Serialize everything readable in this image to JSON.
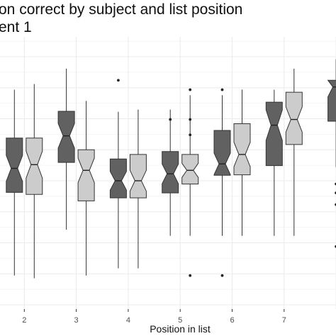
{
  "chart_data": {
    "type": "box",
    "title_lines": [
      "on correct by subject and list position",
      "ent 1"
    ],
    "xlabel": "Position in list",
    "ylabel": "",
    "x_ticks": [
      "2",
      "3",
      "4",
      "5",
      "6",
      "7"
    ],
    "notched": true,
    "grid": true,
    "legend": "none",
    "y_range": [
      0,
      1
    ],
    "series": [
      {
        "color": "#616161"
      },
      {
        "color": "#cccccc"
      }
    ],
    "groups": [
      {
        "position": 1,
        "boxes": [
          {
            "series": 0,
            "whisker_low": 0.118,
            "q1": 0.453,
            "median": 0.55,
            "q3": 0.672,
            "whisker_high": 0.867,
            "outliers": []
          },
          {
            "series": 1,
            "whisker_low": 0.107,
            "q1": 0.445,
            "median": 0.565,
            "q3": 0.672,
            "whisker_high": 0.89,
            "outliers": []
          }
        ]
      },
      {
        "position": 2,
        "boxes": [
          {
            "series": 0,
            "whisker_low": 0.303,
            "q1": 0.574,
            "median": 0.681,
            "q3": 0.78,
            "whisker_high": 0.952,
            "outliers": []
          },
          {
            "series": 1,
            "whisker_low": 0.118,
            "q1": 0.419,
            "median": 0.542,
            "q3": 0.625,
            "whisker_high": 0.822,
            "outliers": []
          }
        ]
      },
      {
        "position": 3,
        "boxes": [
          {
            "series": 0,
            "whisker_low": 0.147,
            "q1": 0.431,
            "median": 0.5,
            "q3": 0.588,
            "whisker_high": 0.778,
            "outliers": [
              0.905
            ]
          },
          {
            "series": 1,
            "whisker_low": 0.147,
            "q1": 0.431,
            "median": 0.5,
            "q3": 0.606,
            "whisker_high": 0.787,
            "outliers": []
          }
        ]
      },
      {
        "position": 4,
        "boxes": [
          {
            "series": 0,
            "whisker_low": 0.278,
            "q1": 0.451,
            "median": 0.528,
            "q3": 0.618,
            "whisker_high": 0.787,
            "outliers": [
              0.747
            ]
          },
          {
            "series": 1,
            "whisker_low": 0.278,
            "q1": 0.487,
            "median": 0.542,
            "q3": 0.606,
            "whisker_high": 0.845,
            "outliers": [
              0.685,
              0.747,
              0.867,
              0.118
            ]
          }
        ]
      },
      {
        "position": 5,
        "boxes": [
          {
            "series": 0,
            "whisker_low": 0.278,
            "q1": 0.522,
            "median": 0.568,
            "q3": 0.703,
            "whisker_high": 0.845,
            "outliers": [
              0.867,
              0.118
            ]
          },
          {
            "series": 1,
            "whisker_low": 0.278,
            "q1": 0.524,
            "median": 0.606,
            "q3": 0.73,
            "whisker_high": 0.867,
            "outliers": []
          }
        ]
      },
      {
        "position": 6,
        "boxes": [
          {
            "series": 0,
            "whisker_low": 0.278,
            "q1": 0.561,
            "median": 0.724,
            "q3": 0.817,
            "whisker_high": 0.867,
            "outliers": []
          },
          {
            "series": 1,
            "whisker_low": 0.278,
            "q1": 0.646,
            "median": 0.747,
            "q3": 0.857,
            "whisker_high": 0.952,
            "outliers": []
          }
        ]
      },
      {
        "position": 7,
        "boxes": [
          {
            "series": 0,
            "whisker_low": 0.555,
            "q1": 0.74,
            "median": 0.878,
            "q3": 0.905,
            "whisker_high": 0.99,
            "outliers": [
              0.235,
              0.487,
              0.451,
              0.404
            ]
          }
        ]
      }
    ]
  }
}
